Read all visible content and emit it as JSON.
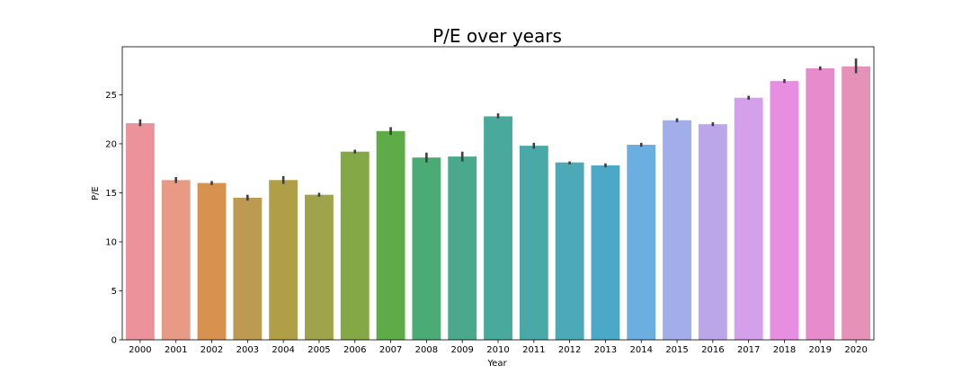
{
  "chart_data": {
    "type": "bar",
    "title": "P/E over years",
    "xlabel": "Year",
    "ylabel": "P/E",
    "ylim": [
      0,
      29.9
    ],
    "yticks": [
      0,
      5,
      10,
      15,
      20,
      25
    ],
    "grid": false,
    "error_bars": true,
    "categories": [
      "2000",
      "2001",
      "2002",
      "2003",
      "2004",
      "2005",
      "2006",
      "2007",
      "2008",
      "2009",
      "2010",
      "2011",
      "2012",
      "2013",
      "2014",
      "2015",
      "2016",
      "2017",
      "2018",
      "2019",
      "2020"
    ],
    "values": [
      22.1,
      16.3,
      16.0,
      14.5,
      16.3,
      14.8,
      19.2,
      21.3,
      18.6,
      18.7,
      22.8,
      19.8,
      18.1,
      17.8,
      19.9,
      22.4,
      22.0,
      24.7,
      26.4,
      27.7,
      27.9
    ],
    "error_low": [
      21.8,
      16.0,
      15.8,
      14.2,
      15.9,
      14.6,
      19.0,
      20.9,
      18.1,
      18.2,
      22.6,
      19.5,
      17.9,
      17.6,
      19.7,
      22.2,
      21.8,
      24.5,
      26.2,
      27.5,
      27.2
    ],
    "error_high": [
      22.5,
      16.6,
      16.2,
      14.8,
      16.7,
      15.0,
      19.4,
      21.7,
      19.1,
      19.2,
      23.1,
      20.1,
      18.2,
      18.0,
      20.1,
      22.6,
      22.2,
      24.9,
      26.6,
      27.9,
      28.7
    ],
    "colors": [
      "#eb929b",
      "#e89b84",
      "#d8924f",
      "#bd9a52",
      "#b19f47",
      "#9fa34b",
      "#85a847",
      "#5eac47",
      "#4bab74",
      "#4aa98c",
      "#48a99c",
      "#48a9a7",
      "#4baab5",
      "#4ca8c7",
      "#6aafe0",
      "#a1aee9",
      "#bba6ea",
      "#d5a0eb",
      "#e78ee1",
      "#e68bcc",
      "#e691b7"
    ]
  }
}
